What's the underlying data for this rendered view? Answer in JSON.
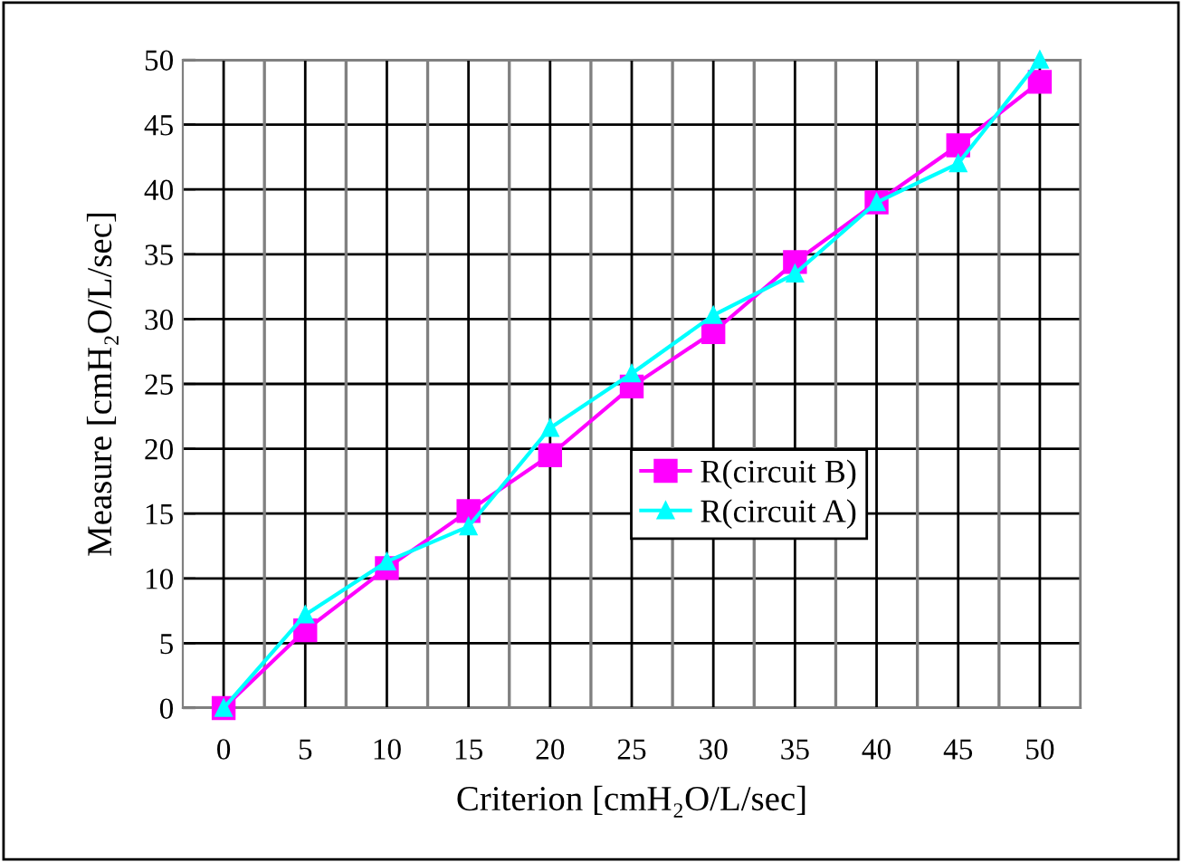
{
  "chart_data": {
    "type": "line",
    "xlabel": "Criterion [cmH₂O/L/sec]",
    "ylabel": "Measure [cmH₂O/L/sec]",
    "categories": [
      "0",
      "5",
      "10",
      "15",
      "20",
      "25",
      "30",
      "35",
      "40",
      "45",
      "50"
    ],
    "series": [
      {
        "name": "R(circuit B)",
        "color": "#ff00ff",
        "marker": "square",
        "values": [
          0,
          6.0,
          10.8,
          15.2,
          19.5,
          24.8,
          29.0,
          34.4,
          39.0,
          43.4,
          48.3
        ]
      },
      {
        "name": "R(circuit A)",
        "color": "#00ffff",
        "marker": "triangle",
        "values": [
          0,
          7.2,
          11.3,
          14.0,
          21.6,
          25.8,
          30.3,
          33.5,
          39.0,
          42.0,
          50.0
        ]
      }
    ],
    "ylim": [
      0,
      50
    ],
    "yticks": [
      0,
      5,
      10,
      15,
      20,
      25,
      30,
      35,
      40,
      45,
      50
    ],
    "grid": true,
    "legend": "right"
  }
}
